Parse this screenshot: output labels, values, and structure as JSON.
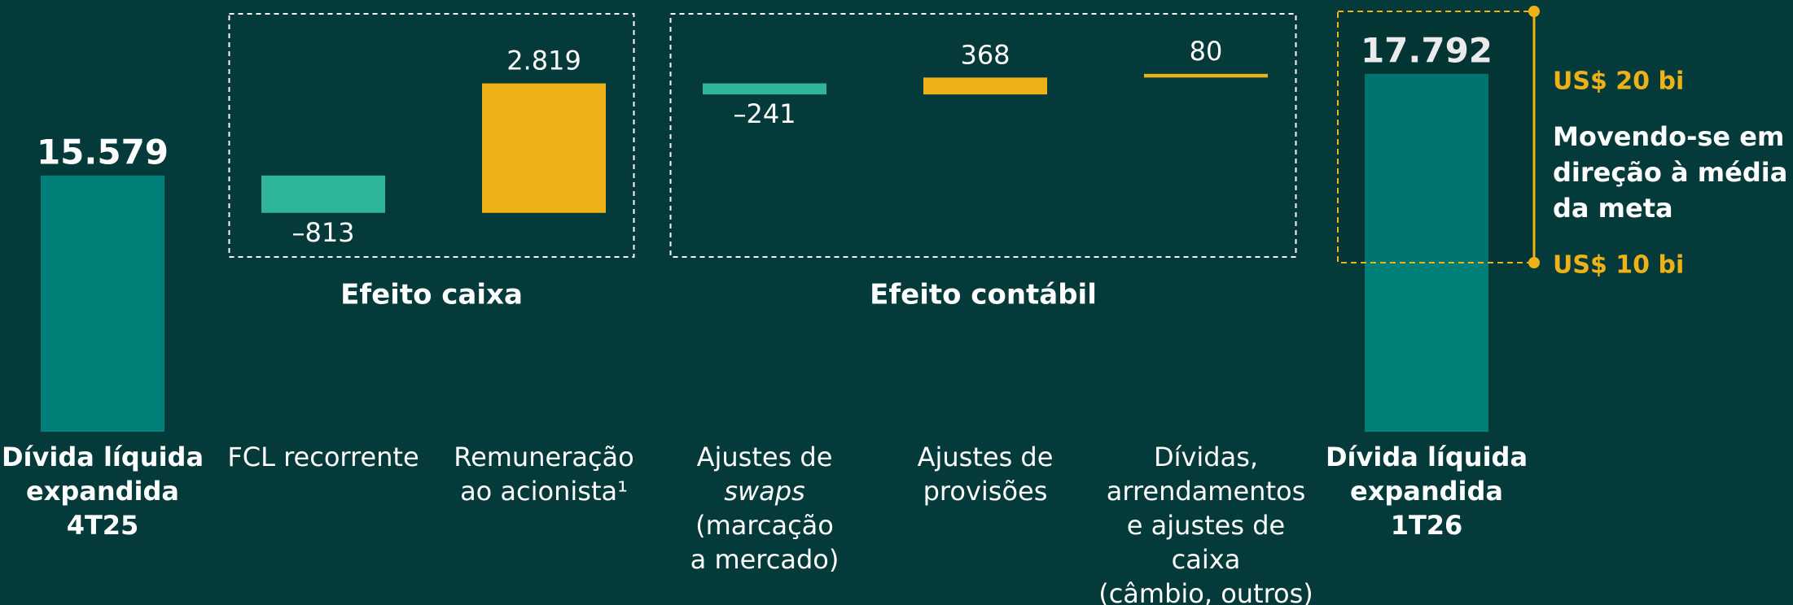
{
  "chart_data": {
    "type": "waterfall",
    "categories": [
      [
        "Dívida líquida",
        "expandida",
        "4T25"
      ],
      [
        "FCL recorrente"
      ],
      [
        "Remuneração",
        "ao acionista¹"
      ],
      [
        "Ajustes de",
        "swaps",
        "(marcação",
        "a mercado)"
      ],
      [
        "Ajustes de",
        "provisões"
      ],
      [
        "Dívidas,",
        "arrendamentos",
        "e ajustes de",
        "caixa",
        "(câmbio, outros)"
      ],
      [
        "Dívida líquida",
        "expandida",
        "1T26"
      ]
    ],
    "values": [
      15579,
      -813,
      2819,
      -241,
      368,
      80,
      17792
    ],
    "value_labels": [
      "15.579",
      "–813",
      "2.819",
      "–241",
      "368",
      "80",
      "17.792"
    ],
    "colors": [
      "#007e78",
      "#2fb59a",
      "#edb217",
      "#2fb59a",
      "#edb217",
      "#edb217",
      "#007e78"
    ],
    "ylim": [
      10000,
      19400
    ],
    "groups": [
      {
        "label": "Efeito caixa",
        "start": 1,
        "end": 2
      },
      {
        "label": "Efeito contábil",
        "start": 3,
        "end": 5
      }
    ],
    "annotations": {
      "top": "US$ 20 bi",
      "text": [
        "Movendo-se em",
        "direção à média",
        "da meta"
      ],
      "bottom": "US$ 10 bi"
    }
  }
}
